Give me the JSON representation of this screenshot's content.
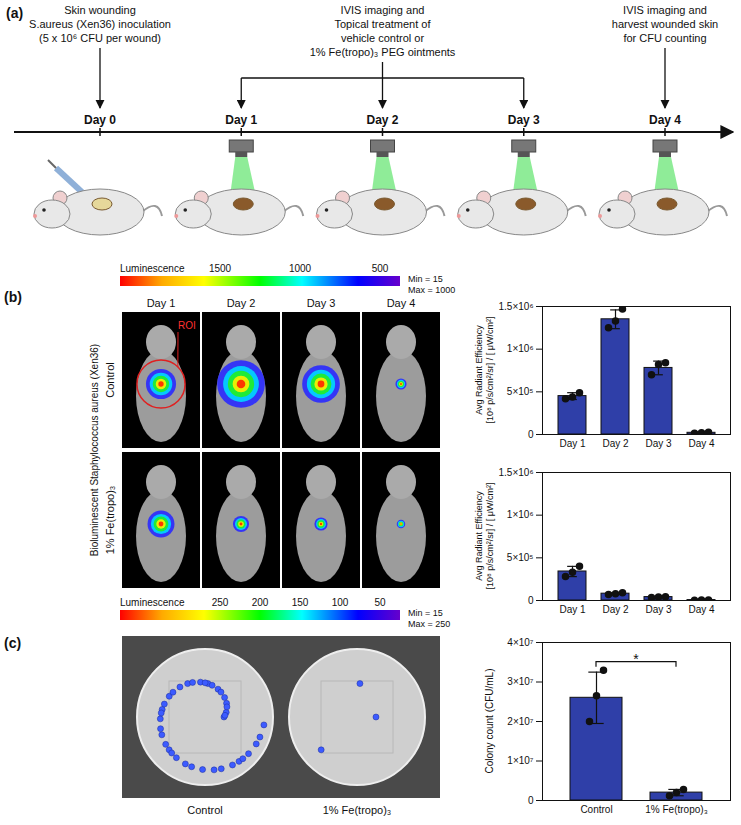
{
  "panel_a": {
    "label": "(a)",
    "days": [
      "Day 0",
      "Day 1",
      "Day 2",
      "Day 3",
      "Day 4"
    ],
    "events": [
      {
        "day": "Day 0",
        "text": [
          "Skin wounding",
          "S.aureus (Xen36) inoculation",
          "(5 x 10⁶ CFU per wound)"
        ]
      },
      {
        "day": "Day 2",
        "span": [
          "Day 1",
          "Day 3"
        ],
        "text": [
          "IVIS imaging and",
          "Topical treatment of",
          "vehicle control or",
          "1% Fe(tropo)₃ PEG ointments"
        ]
      },
      {
        "day": "Day 4",
        "text": [
          "IVIS imaging and",
          "harvest wounded skin",
          "for CFU counting"
        ]
      }
    ]
  },
  "panel_b": {
    "label": "(b)",
    "side_label": "Bioluminescent Staphylococcus aureus (Xen36)",
    "columns": [
      "Day 1",
      "Day 2",
      "Day 3",
      "Day 4"
    ],
    "rows": [
      "Control",
      "1% Fe(tropo)₃"
    ],
    "roi_label": "ROI",
    "color_bars": [
      {
        "title": "Luminescence",
        "labels": [
          1500,
          1000,
          500
        ],
        "min_text": "Min = 15",
        "max_text": "Max = 1000"
      },
      {
        "title": "Luminescence",
        "labels": [
          250,
          200,
          150,
          100,
          50
        ],
        "min_text": "Min = 15",
        "max_text": "Max = 250"
      }
    ]
  },
  "panel_c": {
    "label": "(c)",
    "plates": [
      "Control",
      "1% Fe(tropo)₃"
    ]
  },
  "chart_data": [
    {
      "type": "bar",
      "categories": [
        "Day 1",
        "Day 2",
        "Day 3",
        "Day 4"
      ],
      "values": [
        450000,
        1350000,
        780000,
        20000
      ],
      "errors": [
        40000,
        110000,
        80000,
        5000
      ],
      "points": [
        [
          420000,
          440000,
          490000
        ],
        [
          1250000,
          1330000,
          1470000
        ],
        [
          700000,
          820000,
          840000
        ],
        [
          15000,
          20000,
          25000
        ]
      ],
      "ylabel": "Avg Radiant Efficiency [10⁸ p/s/cm²/sr] / [ μW/cm²]",
      "ylim": [
        0,
        1500000
      ],
      "yticks": [
        0,
        {
          "value": 500000,
          "label": "5×10⁵"
        },
        {
          "value": 1000000,
          "label": "1×10⁶"
        },
        {
          "value": 1500000,
          "label": "1.5×10⁶"
        }
      ],
      "color": "#2f3fa8"
    },
    {
      "type": "bar",
      "categories": [
        "Day 1",
        "Day 2",
        "Day 3",
        "Day 4"
      ],
      "values": [
        340000,
        80000,
        40000,
        5000
      ],
      "errors": [
        60000,
        10000,
        5000,
        2000
      ],
      "points": [
        [
          280000,
          330000,
          400000
        ],
        [
          70000,
          80000,
          90000
        ],
        [
          35000,
          40000,
          45000
        ],
        [
          3000,
          5000,
          7000
        ]
      ],
      "ylabel": "Avg Radiant Efficiency [10⁸ p/s/cm²/sr] / [ μW/cm²]",
      "ylim": [
        0,
        1500000
      ],
      "yticks": [
        0,
        {
          "value": 500000,
          "label": "5×10⁵"
        },
        {
          "value": 1000000,
          "label": "1×10⁶"
        },
        {
          "value": 1500000,
          "label": "1.5×10⁶"
        }
      ],
      "color": "#2f3fa8"
    },
    {
      "type": "bar",
      "categories": [
        "Control",
        "1% Fe(tropo)₃"
      ],
      "values": [
        26000000,
        2000000
      ],
      "errors": [
        6500000,
        800000
      ],
      "points": [
        [
          20000000,
          26500000,
          33000000
        ],
        [
          1200000,
          2000000,
          2800000
        ]
      ],
      "ylabel": "Colony count (CFU/mL)",
      "ylim": [
        0,
        40000000
      ],
      "yticks": [
        0,
        {
          "value": 10000000,
          "label": "1×10⁷"
        },
        {
          "value": 20000000,
          "label": "2×10⁷"
        },
        {
          "value": 30000000,
          "label": "3×10⁷"
        },
        {
          "value": 40000000,
          "label": "4×10⁷"
        }
      ],
      "color": "#2f3fa8",
      "annotation": "*"
    }
  ]
}
